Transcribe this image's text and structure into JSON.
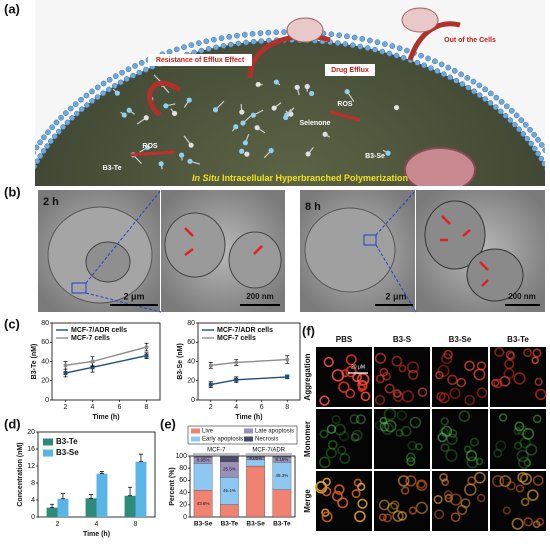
{
  "panel_labels": [
    "(a)",
    "(b)",
    "(c)",
    "(d)",
    "(e)",
    "(f)"
  ],
  "panel_a": {
    "annotations": [
      "Out of the Cells",
      "Resistance of Efflux Effect",
      "Drug Efflux",
      "Selenone",
      "ROS",
      "ROS",
      "B3-Te",
      "B3-Se"
    ],
    "caption_italic": "In Situ",
    "caption": "Intracellular Hyperbranched Polymerization"
  },
  "panel_b": {
    "times": [
      "2 h",
      "8 h"
    ],
    "scale_bars": [
      "2 μm",
      "200 nm",
      "2 μm",
      "200 nm"
    ]
  },
  "chart_data": [
    {
      "type": "line",
      "y_label": "B3-Te (nM)",
      "x_label": "Time (h)",
      "x": [
        2,
        4,
        8
      ],
      "xlim": [
        1,
        9
      ],
      "xticks": [
        2,
        4,
        6,
        8
      ],
      "ylim": [
        0,
        80
      ],
      "yticks": [
        0,
        20,
        40,
        60,
        80
      ],
      "legend": "upper left",
      "series": [
        {
          "name": "MCF-7/ADR cells",
          "color": "#1f4e79",
          "values": [
            28,
            34,
            46
          ],
          "errors": [
            4,
            5,
            3
          ]
        },
        {
          "name": "MCF-7 cells",
          "color": "#8c8c8c",
          "values": [
            36,
            40,
            55
          ],
          "errors": [
            4,
            5,
            4
          ]
        }
      ]
    },
    {
      "type": "line",
      "y_label": "B3-Se (nM)",
      "x_label": "Time (h)",
      "x": [
        2,
        4,
        8
      ],
      "xlim": [
        1,
        9
      ],
      "xticks": [
        2,
        4,
        6,
        8
      ],
      "ylim": [
        0,
        80
      ],
      "yticks": [
        0,
        20,
        40,
        60,
        80
      ],
      "legend": "upper left",
      "series": [
        {
          "name": "MCF-7/ADR cells",
          "color": "#1f4e79",
          "values": [
            16,
            21,
            24
          ],
          "errors": [
            3,
            3,
            2
          ]
        },
        {
          "name": "MCF-7 cells",
          "color": "#8c8c8c",
          "values": [
            36,
            39,
            42
          ],
          "errors": [
            3,
            3,
            4
          ]
        }
      ]
    },
    {
      "type": "bar",
      "y_label": "Concentration (nM)",
      "x_label": "Time (h)",
      "categories": [
        "2",
        "4",
        "8"
      ],
      "ylim": [
        0,
        20
      ],
      "yticks": [
        0,
        4,
        8,
        12,
        16,
        20
      ],
      "legend": "upper left",
      "series": [
        {
          "name": "B3-Te",
          "color": "#2e8b7a",
          "values": [
            2.2,
            4.4,
            5.0
          ],
          "errors": [
            0.8,
            0.9,
            2.0
          ]
        },
        {
          "name": "B3-Se",
          "color": "#5ab4e6",
          "values": [
            4.3,
            10.2,
            13.0
          ],
          "errors": [
            1.2,
            0.5,
            1.8
          ]
        }
      ]
    },
    {
      "type": "stacked_bar",
      "y_label": "Percent (%)",
      "categories": [
        "B3-Se",
        "B3-Te",
        "B3-Se",
        "B3-Te"
      ],
      "group_labels": [
        "MCF-7",
        "MCF-7/ADR"
      ],
      "ylim": [
        0,
        100
      ],
      "yticks": [
        0,
        20,
        40,
        60,
        80,
        100
      ],
      "legend": "top",
      "series": [
        {
          "name": "Live",
          "color": "#f08272",
          "values": [
            43.8,
            20.2,
            83.4,
            44.6
          ],
          "value_labels": [
            "43.8%",
            null,
            null,
            null
          ]
        },
        {
          "name": "Early apoptosis",
          "color": "#8ec8f0",
          "values": [
            44.1,
            45.1,
            10.5,
            45.3
          ],
          "value_labels": [
            null,
            "45.1%",
            null,
            "45.3%"
          ]
        },
        {
          "name": "Late apoptosis",
          "color": "#9a90b8",
          "values": [
            9.95,
            25.5,
            4.05,
            8.15
          ],
          "value_labels": [
            "9.95%",
            "25.5%",
            "4.05%",
            "8.15%"
          ]
        },
        {
          "name": "Necrosis",
          "color": "#4a4a6a",
          "values": [
            2.15,
            9.2,
            2.05,
            1.95
          ],
          "value_labels": [
            null,
            null,
            null,
            null
          ]
        }
      ]
    }
  ],
  "panel_f": {
    "columns": [
      "PBS",
      "B3-S",
      "B3-Se",
      "B3-Te"
    ],
    "rows": [
      "Aggregation",
      "Monomer",
      "Merge"
    ],
    "scale_bar": "20 μM"
  }
}
